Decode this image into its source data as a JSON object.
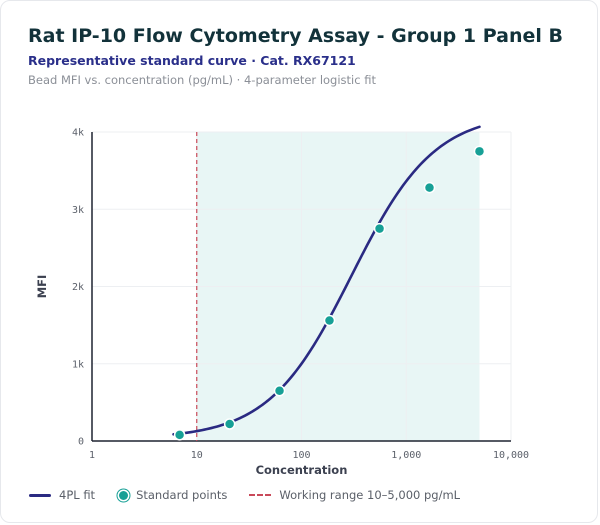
{
  "title": "Rat IP-10 Flow Cytometry Assay - Group 1 Panel B",
  "subtitle": "Representative standard curve · Cat. RX67121",
  "caption": "Bead MFI vs. concentration (pg/mL) · 4-parameter logistic fit",
  "legend": {
    "fit": "4PL fit",
    "points": "Standard points",
    "range": "Working range 10–5,000 pg/mL"
  },
  "colors": {
    "curve": "#2a2a82",
    "points": "#17a096",
    "range_line": "#c94a5a",
    "range_fill": "#e8f6f5"
  },
  "chart_data": {
    "type": "scatter",
    "xlabel": "Concentration",
    "ylabel": "MFI",
    "xscale": "log",
    "xlim": [
      1,
      10000
    ],
    "ylim": [
      0,
      4000
    ],
    "x_ticks": [
      1,
      10,
      100,
      1000,
      10000
    ],
    "x_tick_labels": [
      "1",
      "10",
      "100",
      "1,000",
      "10,000"
    ],
    "y_ticks": [
      0,
      1000,
      2000,
      3000,
      4000
    ],
    "y_tick_labels": [
      "0",
      "1k",
      "2k",
      "3k",
      "4k"
    ],
    "grid": true,
    "working_range": [
      10,
      5000
    ],
    "series": [
      {
        "name": "Standard points",
        "kind": "points",
        "x": [
          6.86,
          20.6,
          61.7,
          185,
          556,
          1667,
          5000
        ],
        "y": [
          80,
          220,
          650,
          1560,
          2750,
          3280,
          3750
        ]
      },
      {
        "name": "4PL fit",
        "kind": "curve",
        "params": {
          "bottom": 30,
          "top": 4250,
          "ec50": 300,
          "hill": 1.1
        },
        "x_range": [
          6,
          5000
        ]
      }
    ]
  }
}
